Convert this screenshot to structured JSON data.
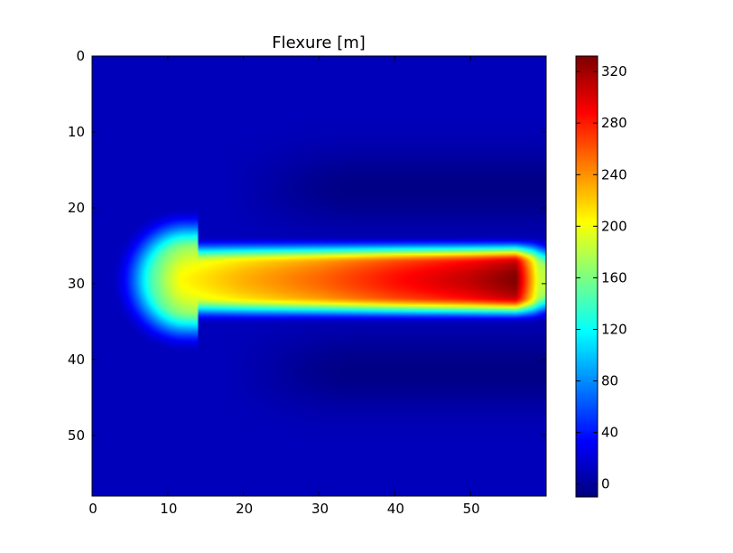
{
  "chart_data": {
    "type": "heatmap",
    "title": "Flexure [m]",
    "xlabel": "",
    "ylabel": "",
    "x_ticks": [
      0,
      10,
      20,
      30,
      40,
      50
    ],
    "y_ticks": [
      0,
      10,
      20,
      30,
      40,
      50
    ],
    "xlim": [
      0,
      60
    ],
    "ylim": [
      58,
      0
    ],
    "y_axis_inverted": true,
    "colormap": "jet",
    "colorbar": {
      "min": -10,
      "max": 332,
      "ticks": [
        0,
        40,
        80,
        120,
        160,
        200,
        240,
        280,
        320
      ],
      "tick_labels": [
        "0",
        "40",
        "80",
        "120",
        "160",
        "200",
        "240",
        "280",
        "320"
      ]
    },
    "field_description_values": {
      "background": 10,
      "bulge_minimum": -8,
      "ridge_row": 29.5,
      "ridge_values": [
        {
          "x": 5,
          "value": 150
        },
        {
          "x": 12,
          "value": 205
        },
        {
          "x": 20,
          "value": 230
        },
        {
          "x": 30,
          "value": 255
        },
        {
          "x": 40,
          "value": 285
        },
        {
          "x": 50,
          "value": 310
        },
        {
          "x": 56,
          "value": 332
        },
        {
          "x": 59,
          "value": 190
        }
      ]
    },
    "grid": false,
    "legend": "colorbar-right"
  }
}
